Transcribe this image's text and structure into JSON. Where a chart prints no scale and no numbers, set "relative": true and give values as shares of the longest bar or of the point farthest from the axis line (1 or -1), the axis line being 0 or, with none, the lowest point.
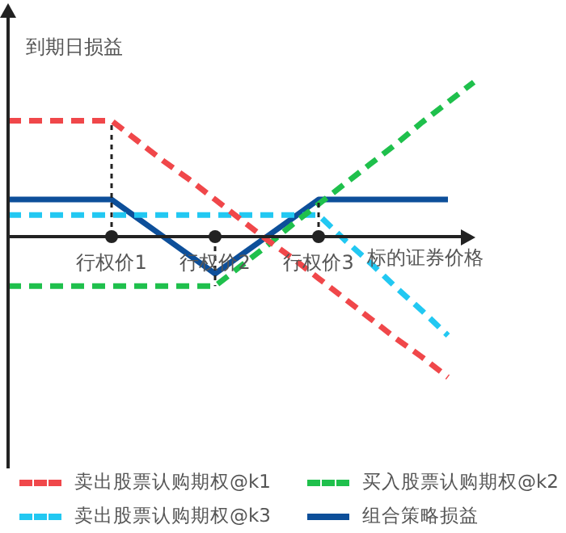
{
  "chart_data": {
    "type": "line",
    "relative": true,
    "ylabel": "到期日损益",
    "xlabel": "标的证券价格",
    "tick_labels": "x",
    "legend": "bottom",
    "marker": "none",
    "categories": [
      null,
      null,
      null,
      null,
      "行权价1",
      null,
      null,
      null,
      "行权价2",
      null,
      null,
      null,
      "行权价3",
      null,
      null,
      null,
      null,
      null,
      null
    ],
    "series": [
      {
        "name": "卖出股票认购期权@k1",
        "color": "#f0474a",
        "line_style": "dashed",
        "values": [
          0.75,
          0.75,
          0.75,
          0.75,
          0.75,
          0.62,
          0.49,
          0.37,
          0.24,
          0.11,
          -0.02,
          -0.14,
          -0.27,
          -0.4,
          -0.53,
          -0.66,
          -0.78,
          -0.91,
          null
        ]
      },
      {
        "name": "买入股票认购期权@k2",
        "color": "#1fc04c",
        "line_style": "dashed",
        "values": [
          -0.32,
          -0.32,
          -0.32,
          -0.32,
          -0.32,
          -0.32,
          -0.32,
          -0.32,
          -0.32,
          -0.19,
          -0.06,
          0.08,
          0.21,
          0.34,
          0.47,
          0.6,
          0.74,
          0.87,
          1
        ]
      },
      {
        "name": "卖出股票认购期权@k3",
        "color": "#22c8f2",
        "line_style": "dashed",
        "values": [
          0.14,
          0.14,
          0.14,
          0.14,
          0.14,
          0.14,
          0.14,
          0.14,
          0.14,
          0.14,
          0.14,
          0.14,
          0.14,
          -0.02,
          -0.17,
          -0.33,
          -0.48,
          -0.64,
          null
        ]
      },
      {
        "name": "组合策略损益",
        "color": "#0d4f9a",
        "line_style": "solid",
        "values": [
          0.24,
          0.24,
          0.24,
          0.24,
          0.24,
          0.12,
          0,
          -0.12,
          -0.24,
          -0.12,
          0,
          0.12,
          0.24,
          0.24,
          0.24,
          0.24,
          0.24,
          0.24,
          null
        ]
      }
    ]
  }
}
